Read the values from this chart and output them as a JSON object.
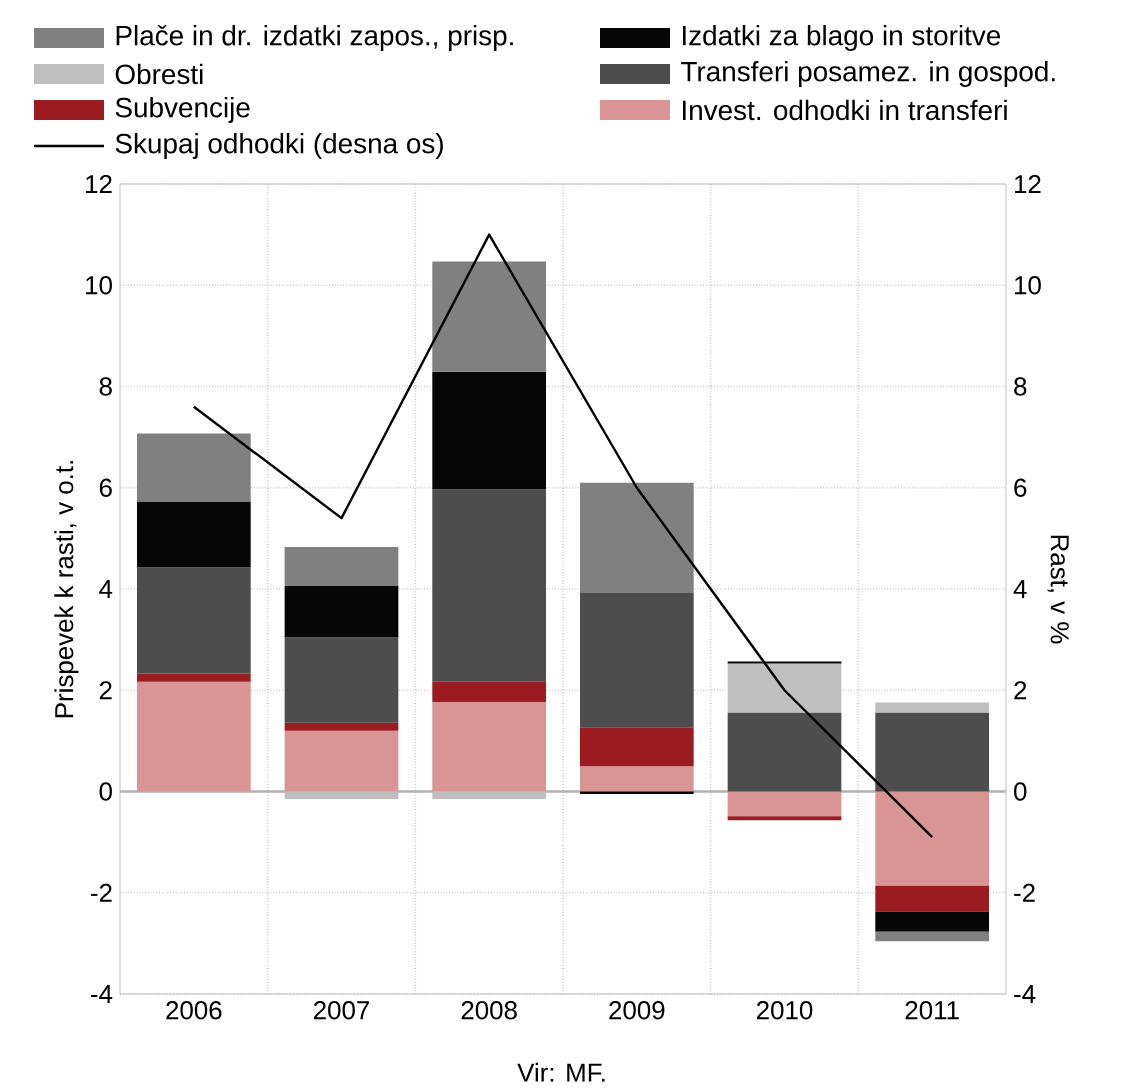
{
  "chart_data": {
    "type": "bar",
    "stacked": true,
    "categories": [
      "2006",
      "2007",
      "2008",
      "2009",
      "2010",
      "2011"
    ],
    "series": [
      {
        "name": "Invest. odhodki in transferi",
        "color": "#d99594",
        "values": [
          2.17,
          1.2,
          1.77,
          0.5,
          -0.49,
          -1.86
        ]
      },
      {
        "name": "Subvencije",
        "color": "#9b1c20",
        "values": [
          0.16,
          0.16,
          0.4,
          0.77,
          -0.08,
          -0.51
        ]
      },
      {
        "name": "Transferi posamez. in gospod.",
        "color": "#4d4d4d",
        "values": [
          2.1,
          1.68,
          3.8,
          2.65,
          1.56,
          1.56
        ]
      },
      {
        "name": "Obresti",
        "color": "#bfbfbf",
        "values": [
          0,
          -0.15,
          -0.15,
          0,
          0.97,
          0.2
        ]
      },
      {
        "name": "Izdatki za blago in storitve",
        "color": "#060606",
        "values": [
          1.3,
          1.03,
          2.32,
          -0.05,
          0.04,
          -0.4
        ]
      },
      {
        "name": "Plače in dr. izdatki zapos., prisp.",
        "color": "#808080",
        "values": [
          1.34,
          0.76,
          2.18,
          2.18,
          0,
          -0.19
        ]
      },
      {
        "name": "Skupaj odhodki (desna os)",
        "type": "line",
        "axis": "y2",
        "color": "#000000",
        "values": [
          7.6,
          5.4,
          11.0,
          6.0,
          2.0,
          -0.9
        ]
      }
    ],
    "ylabel": "Prispevek k rasti, v o.t.",
    "y2label": "Rast, v %",
    "ylim": [
      -4,
      12
    ],
    "yticks": [
      -4,
      -2,
      0,
      2,
      4,
      6,
      8,
      10,
      12
    ],
    "y2lim": [
      -4,
      12
    ],
    "y2ticks": [
      -4,
      -2,
      0,
      2,
      4,
      6,
      8,
      10,
      12
    ],
    "grid": true,
    "legend": "top",
    "annotations": [
      "Vir: MF."
    ]
  }
}
